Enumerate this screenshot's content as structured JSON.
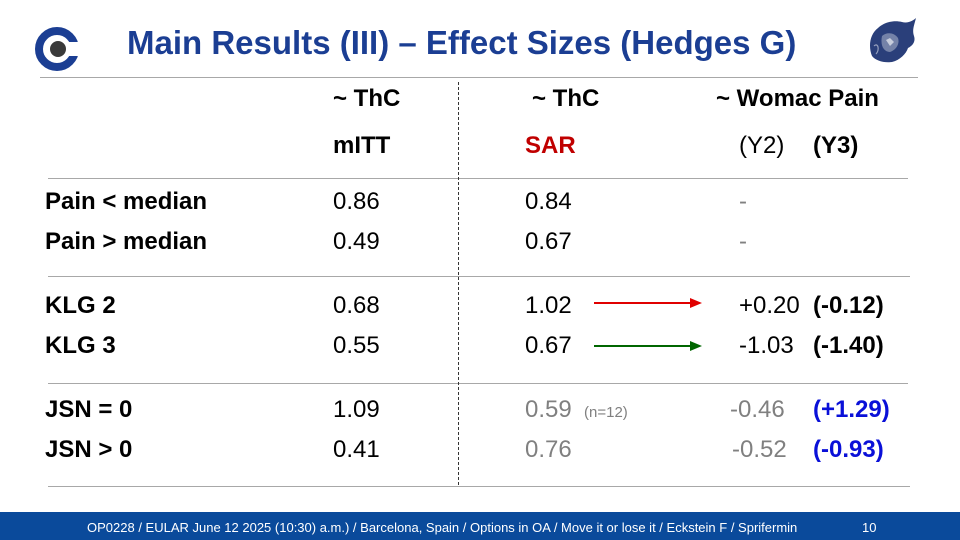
{
  "slide": {
    "title": "Main Results (III) – Effect Sizes (Hedges G)",
    "logo_icon": "c-ring-logo-icon",
    "mascot_icon": "lion-head-logo-icon",
    "colors": {
      "title": "#1b3e93",
      "footer": "#0a4a9b",
      "red": "#c00000",
      "blue": "#0a10d8",
      "arrow_red": "#e00000",
      "arrow_green": "#006600"
    }
  },
  "table": {
    "headers": {
      "col1_line1": "~ ThC",
      "col1_line2": "mITT",
      "col2_line1": "~ ThC",
      "col2_line2": "SAR",
      "col3_line1": "~ Womac Pain",
      "col3_line2a": "(Y2)",
      "col3_line2b": "(Y3)"
    },
    "rows": [
      {
        "label": "Pain < median",
        "mitt": "0.86",
        "sar": "0.84",
        "y2": "-"
      },
      {
        "label": "Pain > median",
        "mitt": "0.49",
        "sar": "0.67",
        "y2": "-"
      },
      {
        "label": "KLG 2",
        "mitt": "0.68",
        "sar": "1.02",
        "y2": "+0.20",
        "y3": "(-0.12)"
      },
      {
        "label": "KLG 3",
        "mitt": "0.55",
        "sar": "0.67",
        "y2": "-1.03",
        "y3": "(-1.40)"
      },
      {
        "label": "JSN = 0",
        "mitt": "1.09",
        "sar": "0.59",
        "sar_note": "(n=12)",
        "y2": "-0.46",
        "y3": "(+1.29)"
      },
      {
        "label": "JSN > 0",
        "mitt": "0.41",
        "sar": "0.76",
        "y2": "-0.52",
        "y3": "(-0.93)"
      }
    ]
  },
  "footer": {
    "text": "OP0228 / EULAR  June 12 2025 (10:30) a.m.) / Barcelona, Spain / Options in OA / Move it or lose it / Eckstein F / Sprifermin",
    "page_number": "10"
  }
}
